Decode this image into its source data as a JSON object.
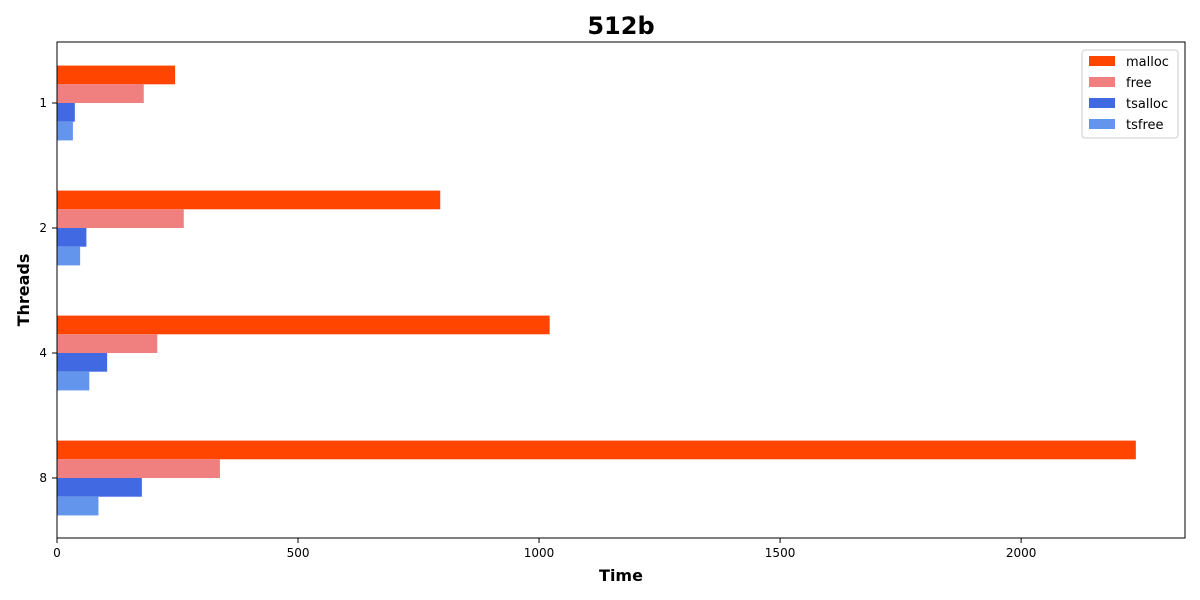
{
  "chart_data": {
    "type": "bar",
    "orientation": "horizontal",
    "title": "512b",
    "xlabel": "Time",
    "ylabel": "Threads",
    "categories": [
      "1",
      "2",
      "4",
      "8"
    ],
    "xlim": [
      0,
      2340
    ],
    "xticks": [
      0,
      500,
      1000,
      1500,
      2000
    ],
    "grid": false,
    "legend_position": "top-right",
    "series": [
      {
        "name": "malloc",
        "color": "#ff4500",
        "values": [
          245,
          795,
          1022,
          2238
        ]
      },
      {
        "name": "free",
        "color": "#f08080",
        "values": [
          180,
          263,
          208,
          338
        ]
      },
      {
        "name": "tsalloc",
        "color": "#4169e1",
        "values": [
          37,
          61,
          104,
          176
        ]
      },
      {
        "name": "tsfree",
        "color": "#6495ed",
        "values": [
          33,
          48,
          67,
          86
        ]
      }
    ]
  }
}
